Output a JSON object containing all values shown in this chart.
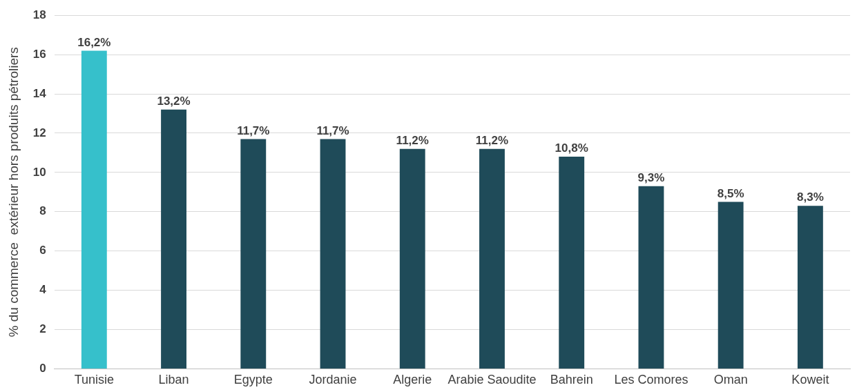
{
  "chart_data": {
    "type": "bar",
    "ylabel": "% du commerce  extérieur hors produits pétroliers",
    "categories": [
      "Tunisie",
      "Liban",
      "Egypte",
      "Jordanie",
      "Algerie",
      "Arabie Saoudite",
      "Bahrein",
      "Les Comores",
      "Oman",
      "Koweit"
    ],
    "values": [
      16.2,
      13.2,
      11.7,
      11.7,
      11.2,
      11.2,
      10.8,
      9.3,
      8.5,
      8.3
    ],
    "colors": [
      "#36c0cb",
      "#1f4b59",
      "#1f4b59",
      "#1f4b59",
      "#1f4b59",
      "#1f4b59",
      "#1f4b59",
      "#1f4b59",
      "#1f4b59",
      "#1f4b59"
    ],
    "value_labels": [
      "16,2%",
      "13,2%",
      "11,7%",
      "11,7%",
      "11,2%",
      "11,2%",
      "10,8%",
      "9,3%",
      "8,5%",
      "8,3%"
    ],
    "ylim": [
      0,
      18
    ],
    "yticks": [
      0,
      2,
      4,
      6,
      8,
      10,
      12,
      14,
      16,
      18
    ],
    "grid": "y"
  }
}
